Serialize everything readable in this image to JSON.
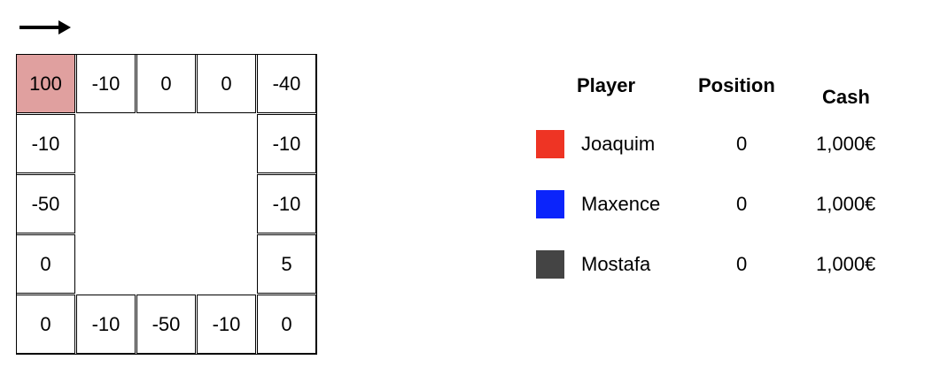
{
  "direction_icon": "right-arrow-icon",
  "board": {
    "top": [
      "100",
      "-10",
      "0",
      "0",
      "-40"
    ],
    "right": [
      "-10",
      "-10",
      "5"
    ],
    "bottom": [
      "0",
      "-10",
      "-50",
      "-10",
      "0"
    ],
    "left": [
      "-10",
      "-50",
      "0"
    ],
    "start_color": "#e0a09f"
  },
  "table": {
    "headers": {
      "player": "Player",
      "position": "Position",
      "cash": "Cash"
    },
    "players": [
      {
        "name": "Joaquim",
        "position": "0",
        "cash": "1,000€",
        "color": "#ee3424"
      },
      {
        "name": "Maxence",
        "position": "0",
        "cash": "1,000€",
        "color": "#0b24fb"
      },
      {
        "name": "Mostafa",
        "position": "0",
        "cash": "1,000€",
        "color": "#444444"
      }
    ]
  }
}
